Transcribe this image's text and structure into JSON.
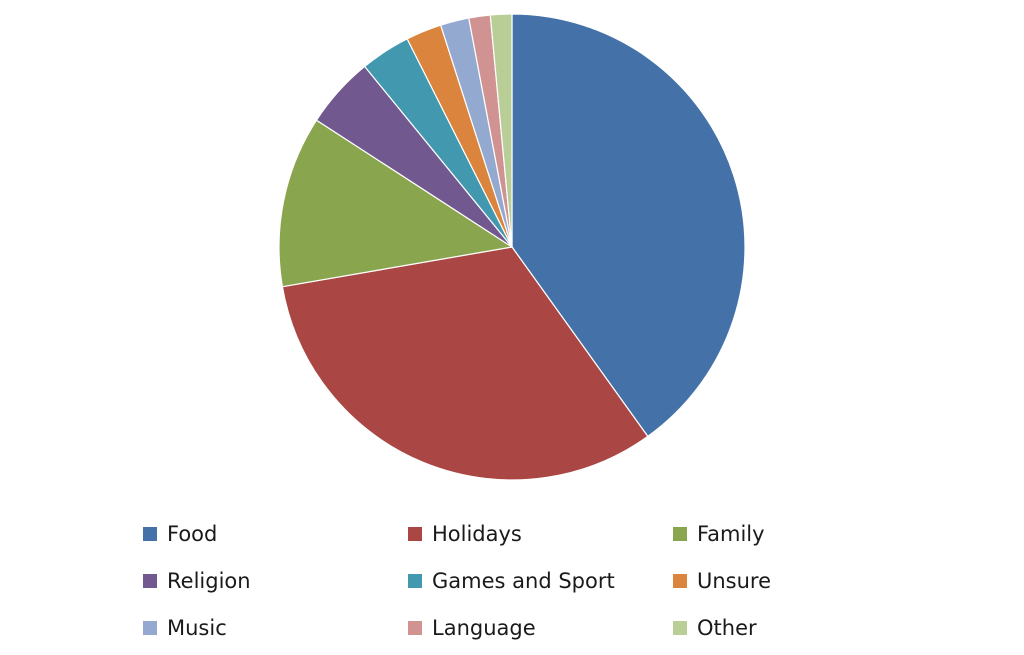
{
  "chart_data": {
    "type": "pie",
    "title": "",
    "slices": [
      {
        "label": "Food",
        "value": 40.5,
        "color": "#4472A8"
      },
      {
        "label": "Holidays",
        "value": 32.5,
        "color": "#AA4643"
      },
      {
        "label": "Family",
        "value": 12.0,
        "color": "#89A54E"
      },
      {
        "label": "Religion",
        "value": 5.0,
        "color": "#71588F"
      },
      {
        "label": "Games and Sport",
        "value": 3.5,
        "color": "#4198AF"
      },
      {
        "label": "Unsure",
        "value": 2.5,
        "color": "#DB843D"
      },
      {
        "label": "Music",
        "value": 2.0,
        "color": "#93A9CF"
      },
      {
        "label": "Language",
        "value": 1.5,
        "color": "#D19392"
      },
      {
        "label": "Other",
        "value": 1.5,
        "color": "#B9CD96"
      }
    ],
    "legend_position": "bottom"
  }
}
